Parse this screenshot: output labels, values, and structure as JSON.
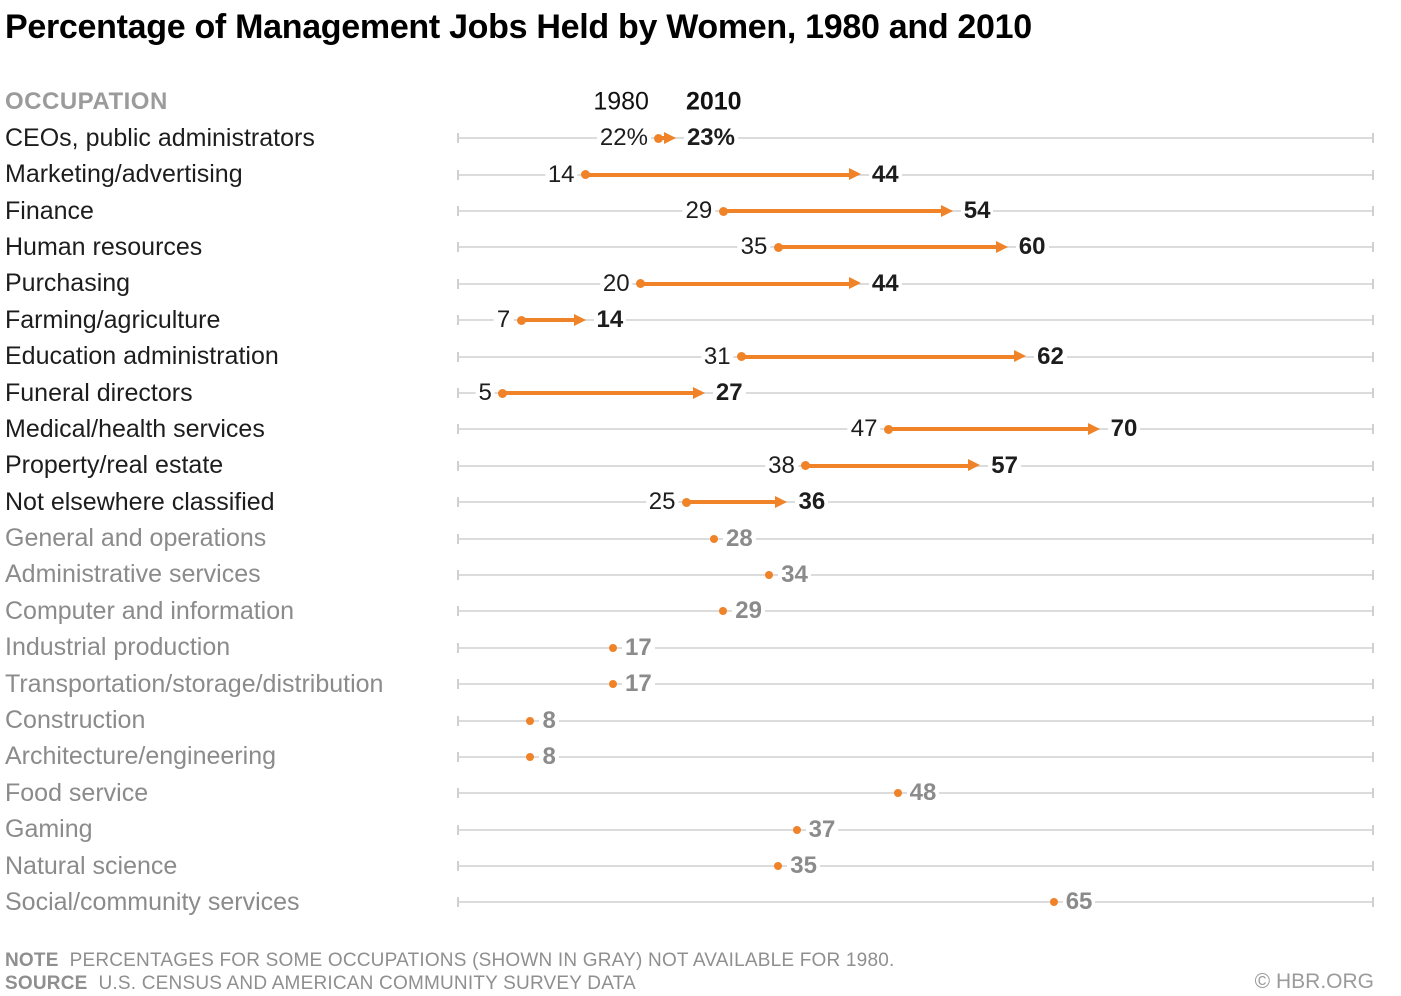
{
  "title": "Percentage of Management Jobs Held by Women, 1980 and 2010",
  "occupation_header": "OCCUPATION",
  "year_labels": {
    "start": "1980",
    "end": "2010"
  },
  "footer": {
    "note_label": "NOTE",
    "note_text": "PERCENTAGES FOR SOME OCCUPATIONS (SHOWN IN GRAY) NOT AVAILABLE FOR 1980.",
    "source_label": "SOURCE",
    "source_text": "U.S. CENSUS AND AMERICAN COMMUNITY SURVEY DATA",
    "copyright": "© HBR.ORG"
  },
  "colors": {
    "accent_orange": "#F08228",
    "text_black": "#1d1d1d",
    "text_gray": "#8b8b8b",
    "header_gray": "#9b9b9b",
    "gridline": "#dcdcdc",
    "note_gray": "#8f8f8f"
  },
  "chart_data": {
    "type": "dumbbell",
    "title": "Percentage of Management Jobs Held by Women, 1980 and 2010",
    "xlabel": "",
    "ylabel": "OCCUPATION",
    "xlim": [
      0,
      100
    ],
    "grid": "per-row horizontal gridlines with end ticks",
    "legend_position": "top, above first row values",
    "series": [
      {
        "name": "1980"
      },
      {
        "name": "2010"
      }
    ],
    "note": "Rows shown in gray have no 1980 value",
    "rows": [
      {
        "occupation": "CEOs, public administrators",
        "v1980": 22,
        "v2010": 23,
        "label1980": "22%",
        "label2010": "23%"
      },
      {
        "occupation": "Marketing/advertising",
        "v1980": 14,
        "v2010": 44,
        "label1980": "14",
        "label2010": "44"
      },
      {
        "occupation": "Finance",
        "v1980": 29,
        "v2010": 54,
        "label1980": "29",
        "label2010": "54"
      },
      {
        "occupation": "Human resources",
        "v1980": 35,
        "v2010": 60,
        "label1980": "35",
        "label2010": "60"
      },
      {
        "occupation": "Purchasing",
        "v1980": 20,
        "v2010": 44,
        "label1980": "20",
        "label2010": "44"
      },
      {
        "occupation": "Farming/agriculture",
        "v1980": 7,
        "v2010": 14,
        "label1980": "7",
        "label2010": "14"
      },
      {
        "occupation": "Education administration",
        "v1980": 31,
        "v2010": 62,
        "label1980": "31",
        "label2010": "62"
      },
      {
        "occupation": "Funeral directors",
        "v1980": 5,
        "v2010": 27,
        "label1980": "5",
        "label2010": "27"
      },
      {
        "occupation": "Medical/health services",
        "v1980": 47,
        "v2010": 70,
        "label1980": "47",
        "label2010": "70"
      },
      {
        "occupation": "Property/real estate",
        "v1980": 38,
        "v2010": 57,
        "label1980": "38",
        "label2010": "57"
      },
      {
        "occupation": "Not elsewhere classified",
        "v1980": 25,
        "v2010": 36,
        "label1980": "25",
        "label2010": "36"
      },
      {
        "occupation": "General and operations",
        "v1980": null,
        "v2010": 28,
        "label1980": null,
        "label2010": "28"
      },
      {
        "occupation": "Administrative services",
        "v1980": null,
        "v2010": 34,
        "label1980": null,
        "label2010": "34"
      },
      {
        "occupation": "Computer and information",
        "v1980": null,
        "v2010": 29,
        "label1980": null,
        "label2010": "29"
      },
      {
        "occupation": "Industrial production",
        "v1980": null,
        "v2010": 17,
        "label1980": null,
        "label2010": "17"
      },
      {
        "occupation": "Transportation/storage/distribution",
        "v1980": null,
        "v2010": 17,
        "label1980": null,
        "label2010": "17"
      },
      {
        "occupation": "Construction",
        "v1980": null,
        "v2010": 8,
        "label1980": null,
        "label2010": "8"
      },
      {
        "occupation": "Architecture/engineering",
        "v1980": null,
        "v2010": 8,
        "label1980": null,
        "label2010": "8"
      },
      {
        "occupation": "Food service",
        "v1980": null,
        "v2010": 48,
        "label1980": null,
        "label2010": "48"
      },
      {
        "occupation": "Gaming",
        "v1980": null,
        "v2010": 37,
        "label1980": null,
        "label2010": "37"
      },
      {
        "occupation": "Natural science",
        "v1980": null,
        "v2010": 35,
        "label1980": null,
        "label2010": "35"
      },
      {
        "occupation": "Social/community services",
        "v1980": null,
        "v2010": 65,
        "label1980": null,
        "label2010": "65"
      }
    ]
  }
}
